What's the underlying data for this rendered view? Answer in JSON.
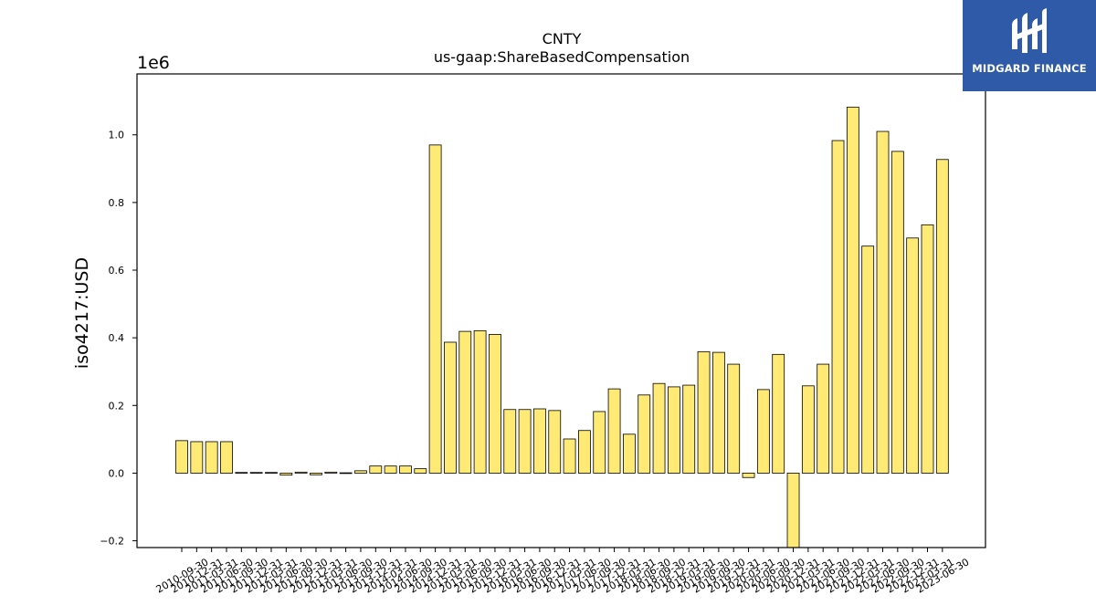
{
  "chart_data": {
    "type": "bar",
    "title": "CNTY",
    "subtitle": "us-gaap:ShareBasedCompensation",
    "ylabel": "iso4217:USD",
    "y_offset_label": "1e6",
    "ylim": [
      -220000,
      1180000
    ],
    "yticks": [
      "−0.2",
      "0.0",
      "0.2",
      "0.4",
      "0.6",
      "0.8",
      "1.0"
    ],
    "ytick_values": [
      -200000,
      0,
      200000,
      400000,
      600000,
      800000,
      1000000
    ],
    "bar_color": "#ffea75",
    "bar_edge_color": "#000000",
    "categories": [
      "2010-09-30",
      "2010-12-31",
      "2011-03-31",
      "2011-06-30",
      "2011-09-30",
      "2011-12-31",
      "2012-03-31",
      "2012-06-30",
      "2012-09-30",
      "2012-12-31",
      "2013-03-31",
      "2013-06-30",
      "2013-09-30",
      "2013-12-31",
      "2014-03-31",
      "2014-06-30",
      "2014-09-30",
      "2014-12-31",
      "2015-03-31",
      "2015-06-30",
      "2015-09-30",
      "2015-12-31",
      "2016-03-31",
      "2016-06-30",
      "2016-09-30",
      "2016-12-31",
      "2017-03-31",
      "2017-06-30",
      "2017-09-30",
      "2017-12-31",
      "2018-03-31",
      "2018-06-30",
      "2018-09-30",
      "2018-12-31",
      "2019-03-31",
      "2019-06-30",
      "2019-09-30",
      "2019-12-31",
      "2020-03-31",
      "2020-06-30",
      "2020-09-30",
      "2020-12-31",
      "2021-03-31",
      "2021-06-30",
      "2021-09-30",
      "2021-12-31",
      "2022-03-31",
      "2022-06-30",
      "2022-09-30",
      "2022-12-31",
      "2023-03-31",
      "2023-06-30"
    ],
    "values": [
      96000,
      93000,
      93000,
      93000,
      2000,
      2000,
      2000,
      -6000,
      3000,
      -5000,
      3000,
      1000,
      7000,
      21000,
      21000,
      21000,
      13000,
      970000,
      387000,
      419000,
      421000,
      410000,
      188000,
      188000,
      190000,
      185000,
      101000,
      126000,
      182000,
      249000,
      115000,
      231000,
      265000,
      255000,
      260000,
      359000,
      357000,
      322000,
      -13000,
      247000,
      351000,
      -220000,
      258000,
      322000,
      983000,
      1082000,
      671000,
      1010000,
      951000,
      695000,
      734000,
      927000
    ]
  },
  "logo": {
    "text": "MIDGARD FINANCE",
    "background": "#2f5aa8"
  }
}
